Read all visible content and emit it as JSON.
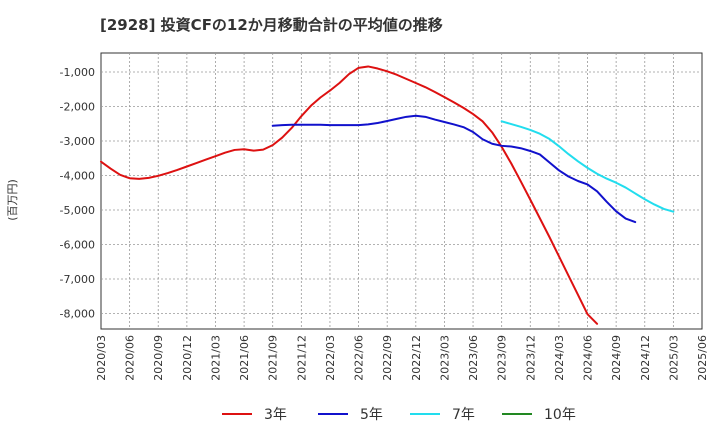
{
  "chart_data": {
    "type": "line",
    "title": "[2928]  投資CFの12か月移動合計の平均値の推移",
    "ylabel": "(百万円)",
    "ylim": [
      -8450,
      -450
    ],
    "yticks": [
      -1000,
      -2000,
      -3000,
      -4000,
      -5000,
      -6000,
      -7000,
      -8000
    ],
    "ytick_labels": [
      "-1,000",
      "-2,000",
      "-3,000",
      "-4,000",
      "-5,000",
      "-6,000",
      "-7,000",
      "-8,000"
    ],
    "x_categories": [
      "2020/03",
      "2020/06",
      "2020/09",
      "2020/12",
      "2021/03",
      "2021/06",
      "2021/09",
      "2021/12",
      "2022/03",
      "2022/06",
      "2022/09",
      "2022/12",
      "2023/03",
      "2023/06",
      "2023/09",
      "2023/12",
      "2024/03",
      "2024/06",
      "2024/09",
      "2024/12",
      "2025/03",
      "2025/06"
    ],
    "grid": true,
    "legend_position": "bottom",
    "colors": {
      "3y": "#dd1111",
      "5y": "#1111cc",
      "7y": "#22ddee",
      "10y": "#228822",
      "grid": "#999999",
      "axis": "#333333",
      "plot_bg": "#ffffff"
    },
    "series": [
      {
        "key": "3y",
        "name": "3年",
        "color": "#dd1111",
        "start_index": 0,
        "values": [
          -3600,
          -3800,
          -3980,
          -4080,
          -4100,
          -4070,
          -4010,
          -3930,
          -3840,
          -3740,
          -3640,
          -3540,
          -3440,
          -3340,
          -3260,
          -3240,
          -3280,
          -3250,
          -3120,
          -2900,
          -2620,
          -2280,
          -1980,
          -1740,
          -1540,
          -1320,
          -1060,
          -880,
          -840,
          -900,
          -980,
          -1080,
          -1200,
          -1320,
          -1440,
          -1580,
          -1730,
          -1880,
          -2040,
          -2220,
          -2430,
          -2750,
          -3170,
          -3650,
          -4170,
          -4700,
          -5240,
          -5780,
          -6340,
          -6900,
          -7460,
          -8020,
          -8300
        ]
      },
      {
        "key": "5y",
        "name": "5年",
        "color": "#1111cc",
        "start_index": 18,
        "values": [
          -2560,
          -2540,
          -2530,
          -2530,
          -2530,
          -2530,
          -2540,
          -2540,
          -2540,
          -2540,
          -2520,
          -2480,
          -2420,
          -2360,
          -2300,
          -2270,
          -2300,
          -2380,
          -2450,
          -2520,
          -2600,
          -2740,
          -2950,
          -3080,
          -3140,
          -3160,
          -3210,
          -3290,
          -3390,
          -3620,
          -3850,
          -4030,
          -4160,
          -4260,
          -4460,
          -4760,
          -5040,
          -5250,
          -5350
        ]
      },
      {
        "key": "7y",
        "name": "7年",
        "color": "#22ddee",
        "start_index": 42,
        "values": [
          -2430,
          -2510,
          -2590,
          -2680,
          -2790,
          -2940,
          -3150,
          -3380,
          -3590,
          -3780,
          -3950,
          -4090,
          -4210,
          -4350,
          -4520,
          -4690,
          -4840,
          -4970,
          -5050
        ]
      },
      {
        "key": "10y",
        "name": "10年",
        "color": "#228822",
        "start_index": 0,
        "values": []
      }
    ]
  }
}
